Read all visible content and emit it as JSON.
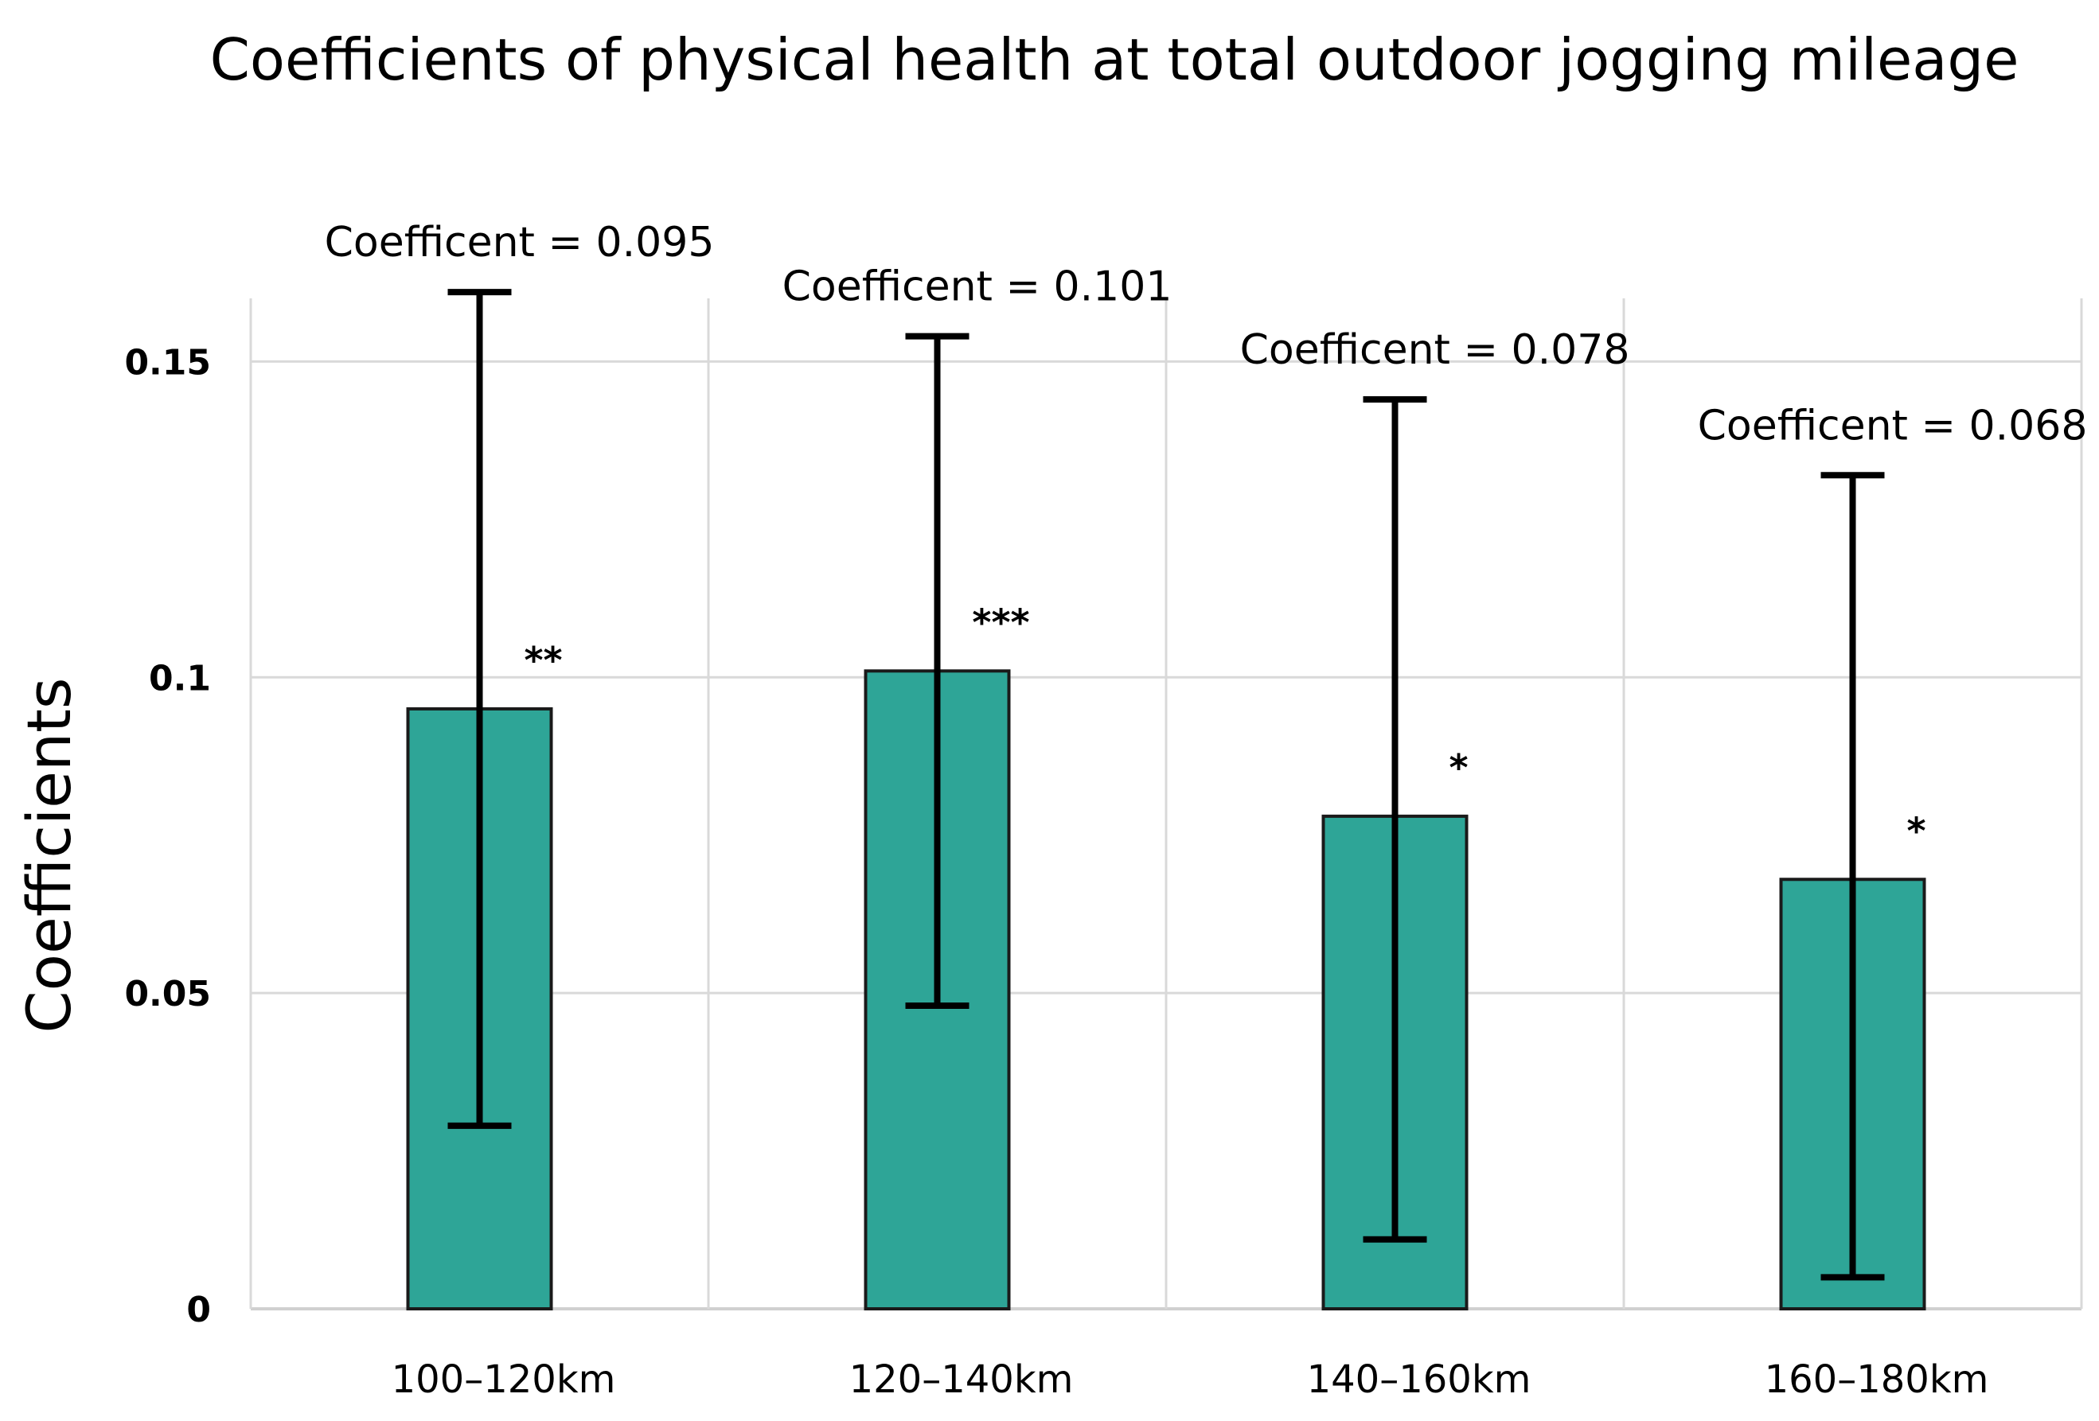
{
  "chart_data": {
    "type": "bar",
    "title": "Coefficients of  physical health at total outdoor jogging mileage",
    "xlabel": "",
    "ylabel": "Coefficients",
    "ylim": [
      0,
      0.16
    ],
    "yticks": [
      0,
      0.05,
      0.1,
      0.15
    ],
    "ytick_labels": [
      "0",
      "0.05",
      "0.1",
      "0.15"
    ],
    "grid": true,
    "categories": [
      "100–120km",
      "120–140km",
      "140–160km",
      "160–180km"
    ],
    "values": [
      0.095,
      0.101,
      0.078,
      0.068
    ],
    "error_low": [
      0.029,
      0.048,
      0.011,
      0.005
    ],
    "error_high": [
      0.161,
      0.154,
      0.144,
      0.132
    ],
    "value_labels": [
      "Coefficent = 0.095",
      "Coefficent = 0.101",
      "Coefficent = 0.078",
      "Coefficent = 0.068"
    ],
    "significance": [
      "**",
      "***",
      "*",
      "*"
    ],
    "colors": {
      "bar_fill": "#2ea597",
      "bar_stroke": "#1a1a1a",
      "error_bar": "#000000",
      "grid": "#d9d9d9"
    }
  }
}
